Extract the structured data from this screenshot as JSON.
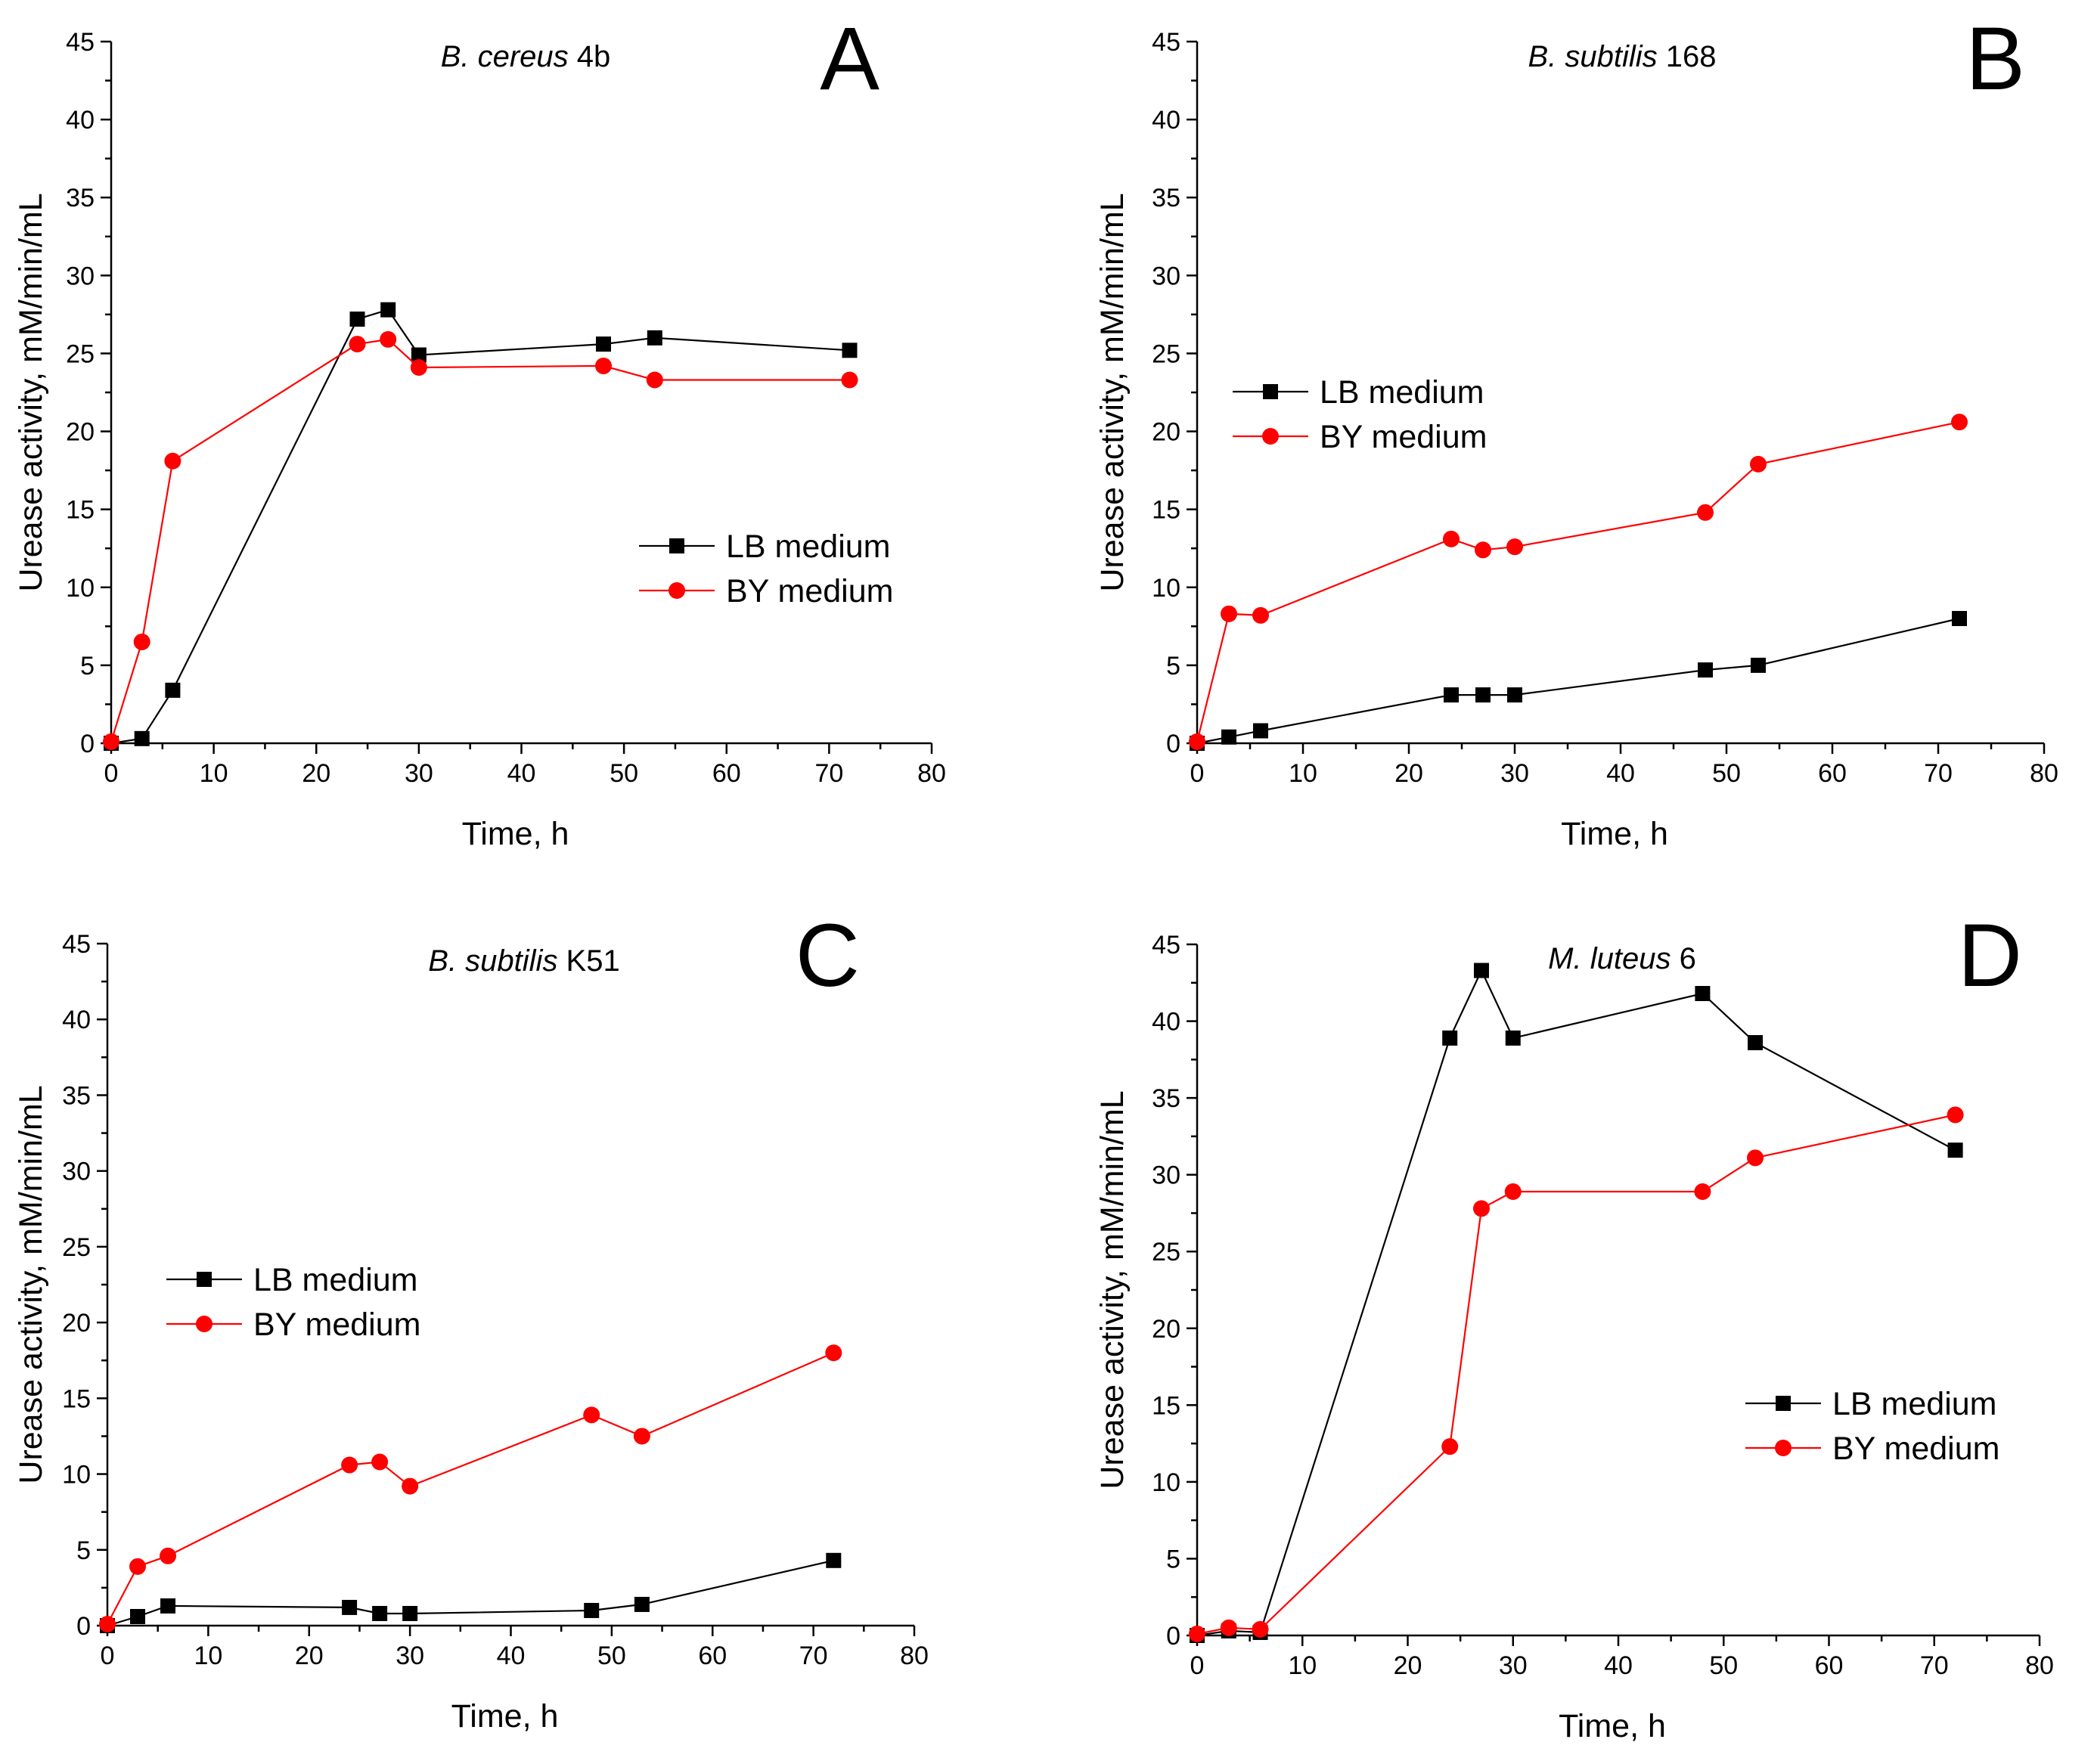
{
  "colors": {
    "LB medium": "#000000",
    "BY medium": "#ff0000",
    "axis": "#000000",
    "background": "#ffffff"
  },
  "chart_data": [
    {
      "panel": "A",
      "type": "line",
      "title_italic": "B. cereus",
      "title_rest": " 4b",
      "xlabel": "Time, h",
      "ylabel": "Urease activity, mM/min/mL",
      "xlim": [
        0,
        80
      ],
      "ylim": [
        0,
        45
      ],
      "xticks": [
        0,
        10,
        20,
        30,
        40,
        50,
        60,
        70,
        80
      ],
      "yticks": [
        0,
        5,
        10,
        15,
        20,
        25,
        30,
        35,
        40,
        45
      ],
      "legend_position": "right-middle",
      "series": [
        {
          "name": "LB medium",
          "marker": "square",
          "x": [
            0,
            3,
            6,
            24,
            27,
            30,
            48,
            53,
            72
          ],
          "y": [
            0,
            0.3,
            3.4,
            27.2,
            27.8,
            24.9,
            25.6,
            26.0,
            25.2
          ]
        },
        {
          "name": "BY medium",
          "marker": "circle",
          "x": [
            0,
            3,
            6,
            24,
            27,
            30,
            48,
            53,
            72
          ],
          "y": [
            0.1,
            6.5,
            18.1,
            25.6,
            25.9,
            24.1,
            24.2,
            23.3,
            23.3
          ]
        }
      ]
    },
    {
      "panel": "B",
      "type": "line",
      "title_italic": "B. subtilis",
      "title_rest": " 168",
      "xlabel": "Time, h",
      "ylabel": "Urease activity, mM/min/mL",
      "xlim": [
        0,
        80
      ],
      "ylim": [
        0,
        45
      ],
      "xticks": [
        0,
        10,
        20,
        30,
        40,
        50,
        60,
        70,
        80
      ],
      "yticks": [
        0,
        5,
        10,
        15,
        20,
        25,
        30,
        35,
        40,
        45
      ],
      "legend_position": "left-middle",
      "series": [
        {
          "name": "LB medium",
          "marker": "square",
          "x": [
            0,
            3,
            6,
            24,
            27,
            30,
            48,
            53,
            72
          ],
          "y": [
            0,
            0.4,
            0.8,
            3.1,
            3.1,
            3.1,
            4.7,
            5.0,
            8.0
          ]
        },
        {
          "name": "BY medium",
          "marker": "circle",
          "x": [
            0,
            3,
            6,
            24,
            27,
            30,
            48,
            53,
            72
          ],
          "y": [
            0.1,
            8.3,
            8.2,
            13.1,
            12.4,
            12.6,
            14.8,
            17.9,
            20.6
          ]
        }
      ]
    },
    {
      "panel": "C",
      "type": "line",
      "title_italic": "B. subtilis",
      "title_rest": " K51",
      "xlabel": "Time, h",
      "ylabel": "Urease activity, mM/min/mL",
      "xlim": [
        0,
        80
      ],
      "ylim": [
        0,
        45
      ],
      "xticks": [
        0,
        10,
        20,
        30,
        40,
        50,
        60,
        70,
        80
      ],
      "yticks": [
        0,
        5,
        10,
        15,
        20,
        25,
        30,
        35,
        40,
        45
      ],
      "legend_position": "left-middle",
      "series": [
        {
          "name": "LB medium",
          "marker": "square",
          "x": [
            0,
            3,
            6,
            24,
            27,
            30,
            48,
            53,
            72
          ],
          "y": [
            0,
            0.6,
            1.3,
            1.2,
            0.8,
            0.8,
            1.0,
            1.4,
            4.3
          ]
        },
        {
          "name": "BY medium",
          "marker": "circle",
          "x": [
            0,
            3,
            6,
            24,
            27,
            30,
            48,
            53,
            72
          ],
          "y": [
            0.1,
            3.9,
            4.6,
            10.6,
            10.8,
            9.2,
            13.9,
            12.5,
            18.0
          ]
        }
      ]
    },
    {
      "panel": "D",
      "type": "line",
      "title_italic": "M. luteus",
      "title_rest": " 6",
      "xlabel": "Time, h",
      "ylabel": "Urease activity, mM/min/mL",
      "xlim": [
        0,
        80
      ],
      "ylim": [
        0,
        45
      ],
      "xticks": [
        0,
        10,
        20,
        30,
        40,
        50,
        60,
        70,
        80
      ],
      "yticks": [
        0,
        5,
        10,
        15,
        20,
        25,
        30,
        35,
        40,
        45
      ],
      "legend_position": "right-lower",
      "series": [
        {
          "name": "LB medium",
          "marker": "square",
          "x": [
            0,
            3,
            6,
            24,
            27,
            30,
            48,
            53,
            72
          ],
          "y": [
            0,
            0.3,
            0.2,
            38.9,
            43.3,
            38.9,
            41.8,
            38.6,
            31.6
          ]
        },
        {
          "name": "BY medium",
          "marker": "circle",
          "x": [
            0,
            3,
            6,
            24,
            27,
            30,
            48,
            53,
            72
          ],
          "y": [
            0.1,
            0.5,
            0.4,
            12.3,
            27.8,
            28.9,
            28.9,
            31.1,
            33.9
          ]
        }
      ]
    }
  ]
}
